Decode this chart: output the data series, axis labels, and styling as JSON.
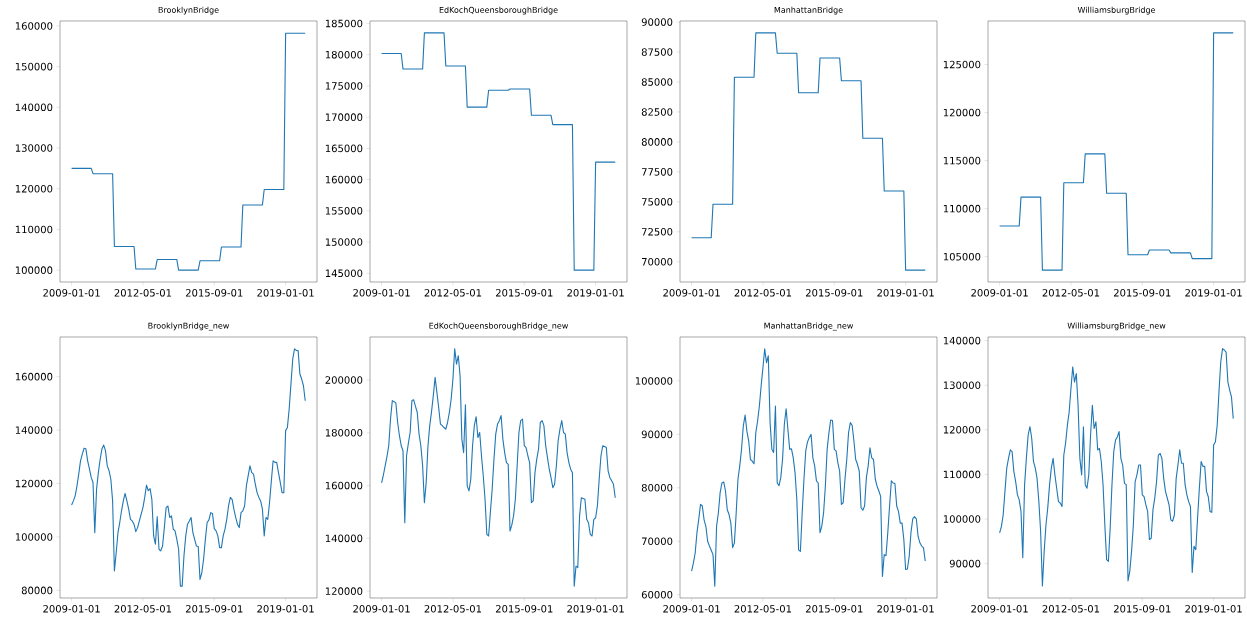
{
  "chart_data": [
    {
      "type": "line",
      "title": "BrooklynBridge",
      "xlim": [
        "2008-06-16",
        "2020-06-19"
      ],
      "xticks": [
        "2009-01-01",
        "2012-05-01",
        "2015-09-01",
        "2019-01-01"
      ],
      "ylim": [
        97090,
        161210
      ],
      "yticks": [
        100000,
        110000,
        120000,
        130000,
        140000,
        150000,
        160000
      ],
      "x": [
        "2009-01",
        "2009-12",
        "2010-01",
        "2010-12",
        "2011-01",
        "2011-12",
        "2012-01",
        "2012-12",
        "2013-01",
        "2013-12",
        "2014-01",
        "2014-12",
        "2015-01",
        "2015-12",
        "2016-01",
        "2016-12",
        "2017-01",
        "2017-12",
        "2018-01",
        "2018-12",
        "2019-01",
        "2019-12"
      ],
      "series": [
        {
          "color": "#1f77b4",
          "values": [
            125000,
            125000,
            123700,
            123700,
            105800,
            105800,
            100300,
            100300,
            102600,
            102600,
            100000,
            100000,
            102300,
            102300,
            105700,
            105700,
            116000,
            116000,
            119800,
            119800,
            158200,
            158200
          ]
        }
      ]
    },
    {
      "type": "line",
      "title": "EdKochQueensboroughBridge",
      "xlim": [
        "2008-06-16",
        "2020-06-19"
      ],
      "xticks": [
        "2009-01-01",
        "2012-05-01",
        "2015-09-01",
        "2019-01-01"
      ],
      "ylim": [
        143600,
        185400
      ],
      "yticks": [
        145000,
        150000,
        155000,
        160000,
        165000,
        170000,
        175000,
        180000,
        185000
      ],
      "x": [
        "2009-01",
        "2009-12",
        "2010-01",
        "2010-12",
        "2011-01",
        "2011-12",
        "2012-01",
        "2012-12",
        "2013-01",
        "2013-12",
        "2014-01",
        "2014-12",
        "2015-01",
        "2015-12",
        "2016-01",
        "2016-12",
        "2017-01",
        "2017-12",
        "2018-01",
        "2018-12",
        "2019-01",
        "2019-12"
      ],
      "series": [
        {
          "color": "#1f77b4",
          "values": [
            180200,
            180200,
            177700,
            177700,
            183500,
            183500,
            178200,
            178200,
            171600,
            171600,
            174300,
            174300,
            174500,
            174500,
            170300,
            170300,
            168800,
            168800,
            145500,
            145500,
            162800,
            162800
          ]
        }
      ]
    },
    {
      "type": "line",
      "title": "ManhattanBridge",
      "xlim": [
        "2008-06-16",
        "2020-06-19"
      ],
      "xticks": [
        "2009-01-01",
        "2012-05-01",
        "2015-09-01",
        "2019-01-01"
      ],
      "ylim": [
        68310,
        90090
      ],
      "yticks": [
        70000,
        72500,
        75000,
        77500,
        80000,
        82500,
        85000,
        87500,
        90000
      ],
      "x": [
        "2009-01",
        "2009-12",
        "2010-01",
        "2010-12",
        "2011-01",
        "2011-12",
        "2012-01",
        "2012-12",
        "2013-01",
        "2013-12",
        "2014-01",
        "2014-12",
        "2015-01",
        "2015-12",
        "2016-01",
        "2016-12",
        "2017-01",
        "2017-12",
        "2018-01",
        "2018-12",
        "2019-01",
        "2019-12"
      ],
      "series": [
        {
          "color": "#1f77b4",
          "values": [
            72000,
            72000,
            74800,
            74800,
            85400,
            85400,
            89100,
            89100,
            87400,
            87400,
            84100,
            84100,
            87000,
            87000,
            85100,
            85100,
            80300,
            80300,
            75900,
            75900,
            69300,
            69300
          ]
        }
      ]
    },
    {
      "type": "line",
      "title": "WilliamsburgBridge",
      "xlim": [
        "2008-06-16",
        "2020-06-19"
      ],
      "xticks": [
        "2009-01-01",
        "2012-05-01",
        "2015-09-01",
        "2019-01-01"
      ],
      "ylim": [
        102365,
        129535
      ],
      "yticks": [
        105000,
        110000,
        115000,
        120000,
        125000
      ],
      "x": [
        "2009-01",
        "2009-12",
        "2010-01",
        "2010-12",
        "2011-01",
        "2011-12",
        "2012-01",
        "2012-12",
        "2013-01",
        "2013-12",
        "2014-01",
        "2014-12",
        "2015-01",
        "2015-12",
        "2016-01",
        "2016-12",
        "2017-01",
        "2017-12",
        "2018-01",
        "2018-12",
        "2019-01",
        "2019-12"
      ],
      "series": [
        {
          "color": "#1f77b4",
          "values": [
            108200,
            108200,
            111200,
            111200,
            103600,
            103600,
            112700,
            112700,
            115700,
            115700,
            111600,
            111600,
            105200,
            105200,
            105700,
            105700,
            105400,
            105400,
            104800,
            104800,
            128300,
            128300
          ]
        }
      ]
    },
    {
      "type": "line",
      "title": "BrooklynBridge_new",
      "xlim": [
        "2008-06-16",
        "2020-06-19"
      ],
      "xticks": [
        "2009-01-01",
        "2012-05-01",
        "2015-09-01",
        "2019-01-01"
      ],
      "ylim": [
        77160,
        174840
      ],
      "yticks": [
        80000,
        100000,
        120000,
        140000,
        160000
      ],
      "x": [
        "2009-01",
        "2009-02",
        "2009-03",
        "2009-04",
        "2009-05",
        "2009-06",
        "2009-07",
        "2009-08",
        "2009-09",
        "2009-10",
        "2009-11",
        "2009-12",
        "2010-01",
        "2010-02",
        "2010-03",
        "2010-04",
        "2010-05",
        "2010-06",
        "2010-07",
        "2010-08",
        "2010-09",
        "2010-10",
        "2010-11",
        "2010-12",
        "2011-01",
        "2011-02",
        "2011-03",
        "2011-04",
        "2011-05",
        "2011-06",
        "2011-07",
        "2011-08",
        "2011-09",
        "2011-10",
        "2011-11",
        "2011-12",
        "2012-01",
        "2012-02",
        "2012-03",
        "2012-04",
        "2012-05",
        "2012-06",
        "2012-07",
        "2012-08",
        "2012-09",
        "2012-10",
        "2012-11",
        "2012-12",
        "2013-01",
        "2013-02",
        "2013-03",
        "2013-04",
        "2013-05",
        "2013-06",
        "2013-07",
        "2013-08",
        "2013-09",
        "2013-10",
        "2013-11",
        "2013-12",
        "2014-01",
        "2014-02",
        "2014-03",
        "2014-04",
        "2014-05",
        "2014-06",
        "2014-07",
        "2014-08",
        "2014-09",
        "2014-10",
        "2014-11",
        "2014-12",
        "2015-01",
        "2015-02",
        "2015-03",
        "2015-04",
        "2015-05",
        "2015-06",
        "2015-07",
        "2015-08",
        "2015-09",
        "2015-10",
        "2015-11",
        "2015-12",
        "2016-01",
        "2016-02",
        "2016-03",
        "2016-04",
        "2016-05",
        "2016-06",
        "2016-07",
        "2016-08",
        "2016-09",
        "2016-10",
        "2016-11",
        "2016-12",
        "2017-01",
        "2017-02",
        "2017-03",
        "2017-04",
        "2017-05",
        "2017-06",
        "2017-07",
        "2017-08",
        "2017-09",
        "2017-10",
        "2017-11",
        "2017-12",
        "2018-01",
        "2018-02",
        "2018-03",
        "2018-04",
        "2018-05",
        "2018-06",
        "2018-07",
        "2018-08",
        "2018-09",
        "2018-10",
        "2018-11",
        "2018-12",
        "2019-01",
        "2019-02",
        "2019-03",
        "2019-04",
        "2019-05",
        "2019-06",
        "2019-07",
        "2019-08",
        "2019-09",
        "2019-10",
        "2019-11",
        "2019-12"
      ],
      "series": [
        {
          "color": "#1f77b4",
          "values": [
            112000,
            113500,
            115400,
            119000,
            123500,
            128500,
            131000,
            133200,
            133000,
            128500,
            125500,
            122300,
            120400,
            101600,
            117900,
            124100,
            129000,
            132900,
            134400,
            132300,
            126600,
            124800,
            121600,
            113500,
            87300,
            94100,
            101600,
            105400,
            109800,
            113500,
            116300,
            113500,
            110400,
            106600,
            106000,
            104800,
            102000,
            103500,
            106000,
            108500,
            111000,
            114800,
            119400,
            117300,
            118100,
            114100,
            100400,
            97300,
            107600,
            95400,
            94800,
            96600,
            103500,
            111000,
            111600,
            107300,
            107900,
            102900,
            102300,
            99100,
            95400,
            81600,
            81600,
            92900,
            100400,
            104800,
            106000,
            107300,
            101600,
            99100,
            96600,
            96400,
            84100,
            86600,
            91600,
            99100,
            105400,
            106400,
            109100,
            108800,
            103100,
            102300,
            100400,
            96000,
            96000,
            100400,
            102900,
            106600,
            111600,
            114800,
            114100,
            110400,
            107300,
            104800,
            103500,
            109100,
            109800,
            111600,
            119100,
            122900,
            126600,
            124100,
            123500,
            119800,
            116600,
            114800,
            113500,
            110400,
            100400,
            107300,
            106600,
            112900,
            121000,
            128500,
            127900,
            127900,
            124100,
            120400,
            116600,
            116600,
            139800,
            141000,
            147900,
            157300,
            166600,
            170400,
            169800,
            169800,
            161000,
            159100,
            156600,
            151000
          ]
        }
      ]
    },
    {
      "type": "line",
      "title": "EdKochQueensboroughBridge_new",
      "xlim": [
        "2008-06-16",
        "2020-06-19"
      ],
      "xticks": [
        "2009-01-01",
        "2012-05-01",
        "2015-09-01",
        "2019-01-01"
      ],
      "ylim": [
        117400,
        216300
      ],
      "yticks": [
        120000,
        140000,
        160000,
        180000,
        200000
      ],
      "x": [
        "2009-01",
        "2009-02",
        "2009-03",
        "2009-04",
        "2009-05",
        "2009-06",
        "2009-07",
        "2009-08",
        "2009-09",
        "2009-10",
        "2009-11",
        "2009-12",
        "2010-01",
        "2010-02",
        "2010-03",
        "2010-04",
        "2010-05",
        "2010-06",
        "2010-07",
        "2010-08",
        "2010-09",
        "2010-10",
        "2010-11",
        "2010-12",
        "2011-01",
        "2011-02",
        "2011-03",
        "2011-04",
        "2011-05",
        "2011-06",
        "2011-07",
        "2011-08",
        "2011-09",
        "2011-10",
        "2011-11",
        "2011-12",
        "2012-01",
        "2012-02",
        "2012-03",
        "2012-04",
        "2012-05",
        "2012-06",
        "2012-07",
        "2012-08",
        "2012-09",
        "2012-10",
        "2012-11",
        "2012-12",
        "2013-01",
        "2013-02",
        "2013-03",
        "2013-04",
        "2013-05",
        "2013-06",
        "2013-07",
        "2013-08",
        "2013-09",
        "2013-10",
        "2013-11",
        "2013-12",
        "2014-01",
        "2014-02",
        "2014-03",
        "2014-04",
        "2014-05",
        "2014-06",
        "2014-07",
        "2014-08",
        "2014-09",
        "2014-10",
        "2014-11",
        "2014-12",
        "2015-01",
        "2015-02",
        "2015-03",
        "2015-04",
        "2015-05",
        "2015-06",
        "2015-07",
        "2015-08",
        "2015-09",
        "2015-10",
        "2015-11",
        "2015-12",
        "2016-01",
        "2016-02",
        "2016-03",
        "2016-04",
        "2016-05",
        "2016-06",
        "2016-07",
        "2016-08",
        "2016-09",
        "2016-10",
        "2016-11",
        "2016-12",
        "2017-01",
        "2017-02",
        "2017-03",
        "2017-04",
        "2017-05",
        "2017-06",
        "2017-07",
        "2017-08",
        "2017-09",
        "2017-10",
        "2017-11",
        "2017-12",
        "2018-01",
        "2018-02",
        "2018-03",
        "2018-04",
        "2018-05",
        "2018-06",
        "2018-07",
        "2018-08",
        "2018-09",
        "2018-10",
        "2018-11",
        "2018-12",
        "2019-01",
        "2019-02",
        "2019-03",
        "2019-04",
        "2019-05",
        "2019-06",
        "2019-07",
        "2019-08",
        "2019-09",
        "2019-10",
        "2019-11",
        "2019-12"
      ],
      "series": [
        {
          "color": "#1f77b4",
          "values": [
            161000,
            164000,
            167500,
            171000,
            175100,
            185200,
            192200,
            191800,
            191300,
            183900,
            178900,
            175100,
            173200,
            145900,
            171300,
            176000,
            180100,
            192200,
            192500,
            190000,
            187700,
            179500,
            175100,
            167500,
            153500,
            161100,
            175100,
            182700,
            188000,
            194100,
            201000,
            195300,
            189600,
            183300,
            182700,
            182000,
            181400,
            184000,
            187700,
            192800,
            200400,
            211800,
            206000,
            209200,
            201600,
            177600,
            172500,
            190600,
            159900,
            158000,
            162400,
            175100,
            182700,
            186100,
            178200,
            180100,
            171300,
            163700,
            154800,
            141500,
            140900,
            150000,
            158600,
            170000,
            179500,
            183300,
            184600,
            186500,
            177600,
            172500,
            168700,
            168000,
            142800,
            145000,
            148500,
            154800,
            167500,
            180100,
            184600,
            185200,
            175100,
            174400,
            171300,
            168700,
            153500,
            154200,
            164900,
            170000,
            173800,
            183900,
            184600,
            182700,
            175100,
            170600,
            166200,
            163000,
            159200,
            160500,
            167500,
            177000,
            181400,
            184600,
            180100,
            179500,
            172500,
            168700,
            166200,
            164900,
            121900,
            129500,
            128900,
            148500,
            155400,
            155100,
            154800,
            147200,
            145900,
            141500,
            140900,
            147200,
            147800,
            152300,
            162400,
            171300,
            175100,
            174800,
            174400,
            165600,
            163000,
            161800,
            160500,
            155400
          ]
        }
      ]
    },
    {
      "type": "line",
      "title": "ManhattanBridge_new",
      "xlim": [
        "2008-06-16",
        "2020-06-19"
      ],
      "xticks": [
        "2009-01-01",
        "2012-05-01",
        "2015-09-01",
        "2019-01-01"
      ],
      "ylim": [
        59380,
        108220
      ],
      "yticks": [
        60000,
        70000,
        80000,
        90000,
        100000
      ],
      "x": [
        "2009-01",
        "2009-02",
        "2009-03",
        "2009-04",
        "2009-05",
        "2009-06",
        "2009-07",
        "2009-08",
        "2009-09",
        "2009-10",
        "2009-11",
        "2009-12",
        "2010-01",
        "2010-02",
        "2010-03",
        "2010-04",
        "2010-05",
        "2010-06",
        "2010-07",
        "2010-08",
        "2010-09",
        "2010-10",
        "2010-11",
        "2010-12",
        "2011-01",
        "2011-02",
        "2011-03",
        "2011-04",
        "2011-05",
        "2011-06",
        "2011-07",
        "2011-08",
        "2011-09",
        "2011-10",
        "2011-11",
        "2011-12",
        "2012-01",
        "2012-02",
        "2012-03",
        "2012-04",
        "2012-05",
        "2012-06",
        "2012-07",
        "2012-08",
        "2012-09",
        "2012-10",
        "2012-11",
        "2012-12",
        "2013-01",
        "2013-02",
        "2013-03",
        "2013-04",
        "2013-05",
        "2013-06",
        "2013-07",
        "2013-08",
        "2013-09",
        "2013-10",
        "2013-11",
        "2013-12",
        "2014-01",
        "2014-02",
        "2014-03",
        "2014-04",
        "2014-05",
        "2014-06",
        "2014-07",
        "2014-08",
        "2014-09",
        "2014-10",
        "2014-11",
        "2014-12",
        "2015-01",
        "2015-02",
        "2015-03",
        "2015-04",
        "2015-05",
        "2015-06",
        "2015-07",
        "2015-08",
        "2015-09",
        "2015-10",
        "2015-11",
        "2015-12",
        "2016-01",
        "2016-02",
        "2016-03",
        "2016-04",
        "2016-05",
        "2016-06",
        "2016-07",
        "2016-08",
        "2016-09",
        "2016-10",
        "2016-11",
        "2016-12",
        "2017-01",
        "2017-02",
        "2017-03",
        "2017-04",
        "2017-05",
        "2017-06",
        "2017-07",
        "2017-08",
        "2017-09",
        "2017-10",
        "2017-11",
        "2017-12",
        "2018-01",
        "2018-02",
        "2018-03",
        "2018-04",
        "2018-05",
        "2018-06",
        "2018-07",
        "2018-08",
        "2018-09",
        "2018-10",
        "2018-11",
        "2018-12",
        "2019-01",
        "2019-02",
        "2019-03",
        "2019-04",
        "2019-05",
        "2019-06",
        "2019-07",
        "2019-08",
        "2019-09",
        "2019-10",
        "2019-11",
        "2019-12"
      ],
      "series": [
        {
          "color": "#1f77b4",
          "values": [
            64400,
            65900,
            67800,
            71600,
            74100,
            76900,
            76600,
            74000,
            72800,
            70000,
            69100,
            68300,
            67500,
            61600,
            72800,
            75300,
            79100,
            80900,
            81100,
            79400,
            75900,
            75000,
            73400,
            68800,
            69700,
            75300,
            81600,
            84100,
            87200,
            91600,
            93600,
            90600,
            88800,
            85300,
            85000,
            84500,
            90300,
            92500,
            95300,
            99100,
            102500,
            106000,
            103400,
            104700,
            92200,
            87200,
            86600,
            95300,
            80900,
            80400,
            81900,
            85300,
            91900,
            94800,
            90900,
            87200,
            87300,
            85600,
            82800,
            77800,
            68400,
            68100,
            75300,
            81600,
            86900,
            88600,
            89400,
            90000,
            85600,
            84100,
            81300,
            80900,
            71600,
            72800,
            75300,
            80300,
            87200,
            90300,
            92700,
            92600,
            87200,
            86900,
            84700,
            83100,
            76900,
            77200,
            81600,
            85300,
            90300,
            92200,
            91700,
            88800,
            85300,
            84400,
            83100,
            76300,
            75800,
            76600,
            81900,
            84100,
            87500,
            85600,
            85300,
            81600,
            80300,
            79400,
            78400,
            63400,
            67500,
            67300,
            71600,
            76600,
            81300,
            80900,
            80800,
            76600,
            75600,
            73400,
            73400,
            70300,
            64700,
            64800,
            67200,
            71600,
            74200,
            74600,
            74200,
            70900,
            69700,
            69100,
            68800,
            66300
          ]
        }
      ]
    },
    {
      "type": "line",
      "title": "WilliamsburgBridge_new",
      "xlim": [
        "2008-06-16",
        "2020-06-19"
      ],
      "xticks": [
        "2009-01-01",
        "2012-05-01",
        "2015-09-01",
        "2019-01-01"
      ],
      "ylim": [
        82290,
        140810
      ],
      "yticks": [
        90000,
        100000,
        110000,
        120000,
        130000,
        140000
      ],
      "x": [
        "2009-01",
        "2009-02",
        "2009-03",
        "2009-04",
        "2009-05",
        "2009-06",
        "2009-07",
        "2009-08",
        "2009-09",
        "2009-10",
        "2009-11",
        "2009-12",
        "2010-01",
        "2010-02",
        "2010-03",
        "2010-04",
        "2010-05",
        "2010-06",
        "2010-07",
        "2010-08",
        "2010-09",
        "2010-10",
        "2010-11",
        "2010-12",
        "2011-01",
        "2011-02",
        "2011-03",
        "2011-04",
        "2011-05",
        "2011-06",
        "2011-07",
        "2011-08",
        "2011-09",
        "2011-10",
        "2011-11",
        "2011-12",
        "2012-01",
        "2012-02",
        "2012-03",
        "2012-04",
        "2012-05",
        "2012-06",
        "2012-07",
        "2012-08",
        "2012-09",
        "2012-10",
        "2012-11",
        "2012-12",
        "2013-01",
        "2013-02",
        "2013-03",
        "2013-04",
        "2013-05",
        "2013-06",
        "2013-07",
        "2013-08",
        "2013-09",
        "2013-10",
        "2013-11",
        "2013-12",
        "2014-01",
        "2014-02",
        "2014-03",
        "2014-04",
        "2014-05",
        "2014-06",
        "2014-07",
        "2014-08",
        "2014-09",
        "2014-10",
        "2014-11",
        "2014-12",
        "2015-01",
        "2015-02",
        "2015-03",
        "2015-04",
        "2015-05",
        "2015-06",
        "2015-07",
        "2015-08",
        "2015-09",
        "2015-10",
        "2015-11",
        "2015-12",
        "2016-01",
        "2016-02",
        "2016-03",
        "2016-04",
        "2016-05",
        "2016-06",
        "2016-07",
        "2016-08",
        "2016-09",
        "2016-10",
        "2016-11",
        "2016-12",
        "2017-01",
        "2017-02",
        "2017-03",
        "2017-04",
        "2017-05",
        "2017-06",
        "2017-07",
        "2017-08",
        "2017-09",
        "2017-10",
        "2017-11",
        "2017-12",
        "2018-01",
        "2018-02",
        "2018-03",
        "2018-04",
        "2018-05",
        "2018-06",
        "2018-07",
        "2018-08",
        "2018-09",
        "2018-10",
        "2018-11",
        "2018-12",
        "2019-01",
        "2019-02",
        "2019-03",
        "2019-04",
        "2019-05",
        "2019-06",
        "2019-07",
        "2019-08",
        "2019-09",
        "2019-10",
        "2019-11",
        "2019-12"
      ],
      "series": [
        {
          "color": "#1f77b4",
          "values": [
            96900,
            98300,
            100900,
            106200,
            111400,
            113600,
            115500,
            115100,
            110600,
            108400,
            105400,
            104300,
            101700,
            91300,
            107600,
            113600,
            118800,
            120700,
            118100,
            112900,
            111400,
            109100,
            103900,
            97200,
            85000,
            92800,
            98700,
            102500,
            107600,
            111400,
            113600,
            109900,
            106900,
            103900,
            103600,
            102800,
            114300,
            117000,
            121000,
            124000,
            129200,
            134100,
            130700,
            132600,
            125500,
            113600,
            109900,
            120700,
            107700,
            106900,
            109900,
            118800,
            125500,
            120300,
            121800,
            115500,
            115800,
            112900,
            107700,
            98700,
            90900,
            90500,
            98000,
            107700,
            115100,
            117700,
            118400,
            119600,
            113600,
            112100,
            108000,
            107700,
            86100,
            88300,
            92800,
            98700,
            108400,
            109900,
            112100,
            112100,
            105400,
            105000,
            103200,
            101700,
            95400,
            95700,
            102100,
            104700,
            108400,
            114300,
            114700,
            113600,
            109100,
            106200,
            104700,
            103200,
            99800,
            99500,
            100900,
            109100,
            112100,
            115500,
            112500,
            112500,
            107700,
            105400,
            103900,
            102800,
            88000,
            93900,
            93100,
            100200,
            106900,
            112900,
            111800,
            111800,
            106200,
            105000,
            101700,
            101500,
            116600,
            117300,
            121000,
            128500,
            135200,
            138200,
            137900,
            137400,
            130700,
            128900,
            127400,
            122500
          ]
        }
      ]
    }
  ]
}
